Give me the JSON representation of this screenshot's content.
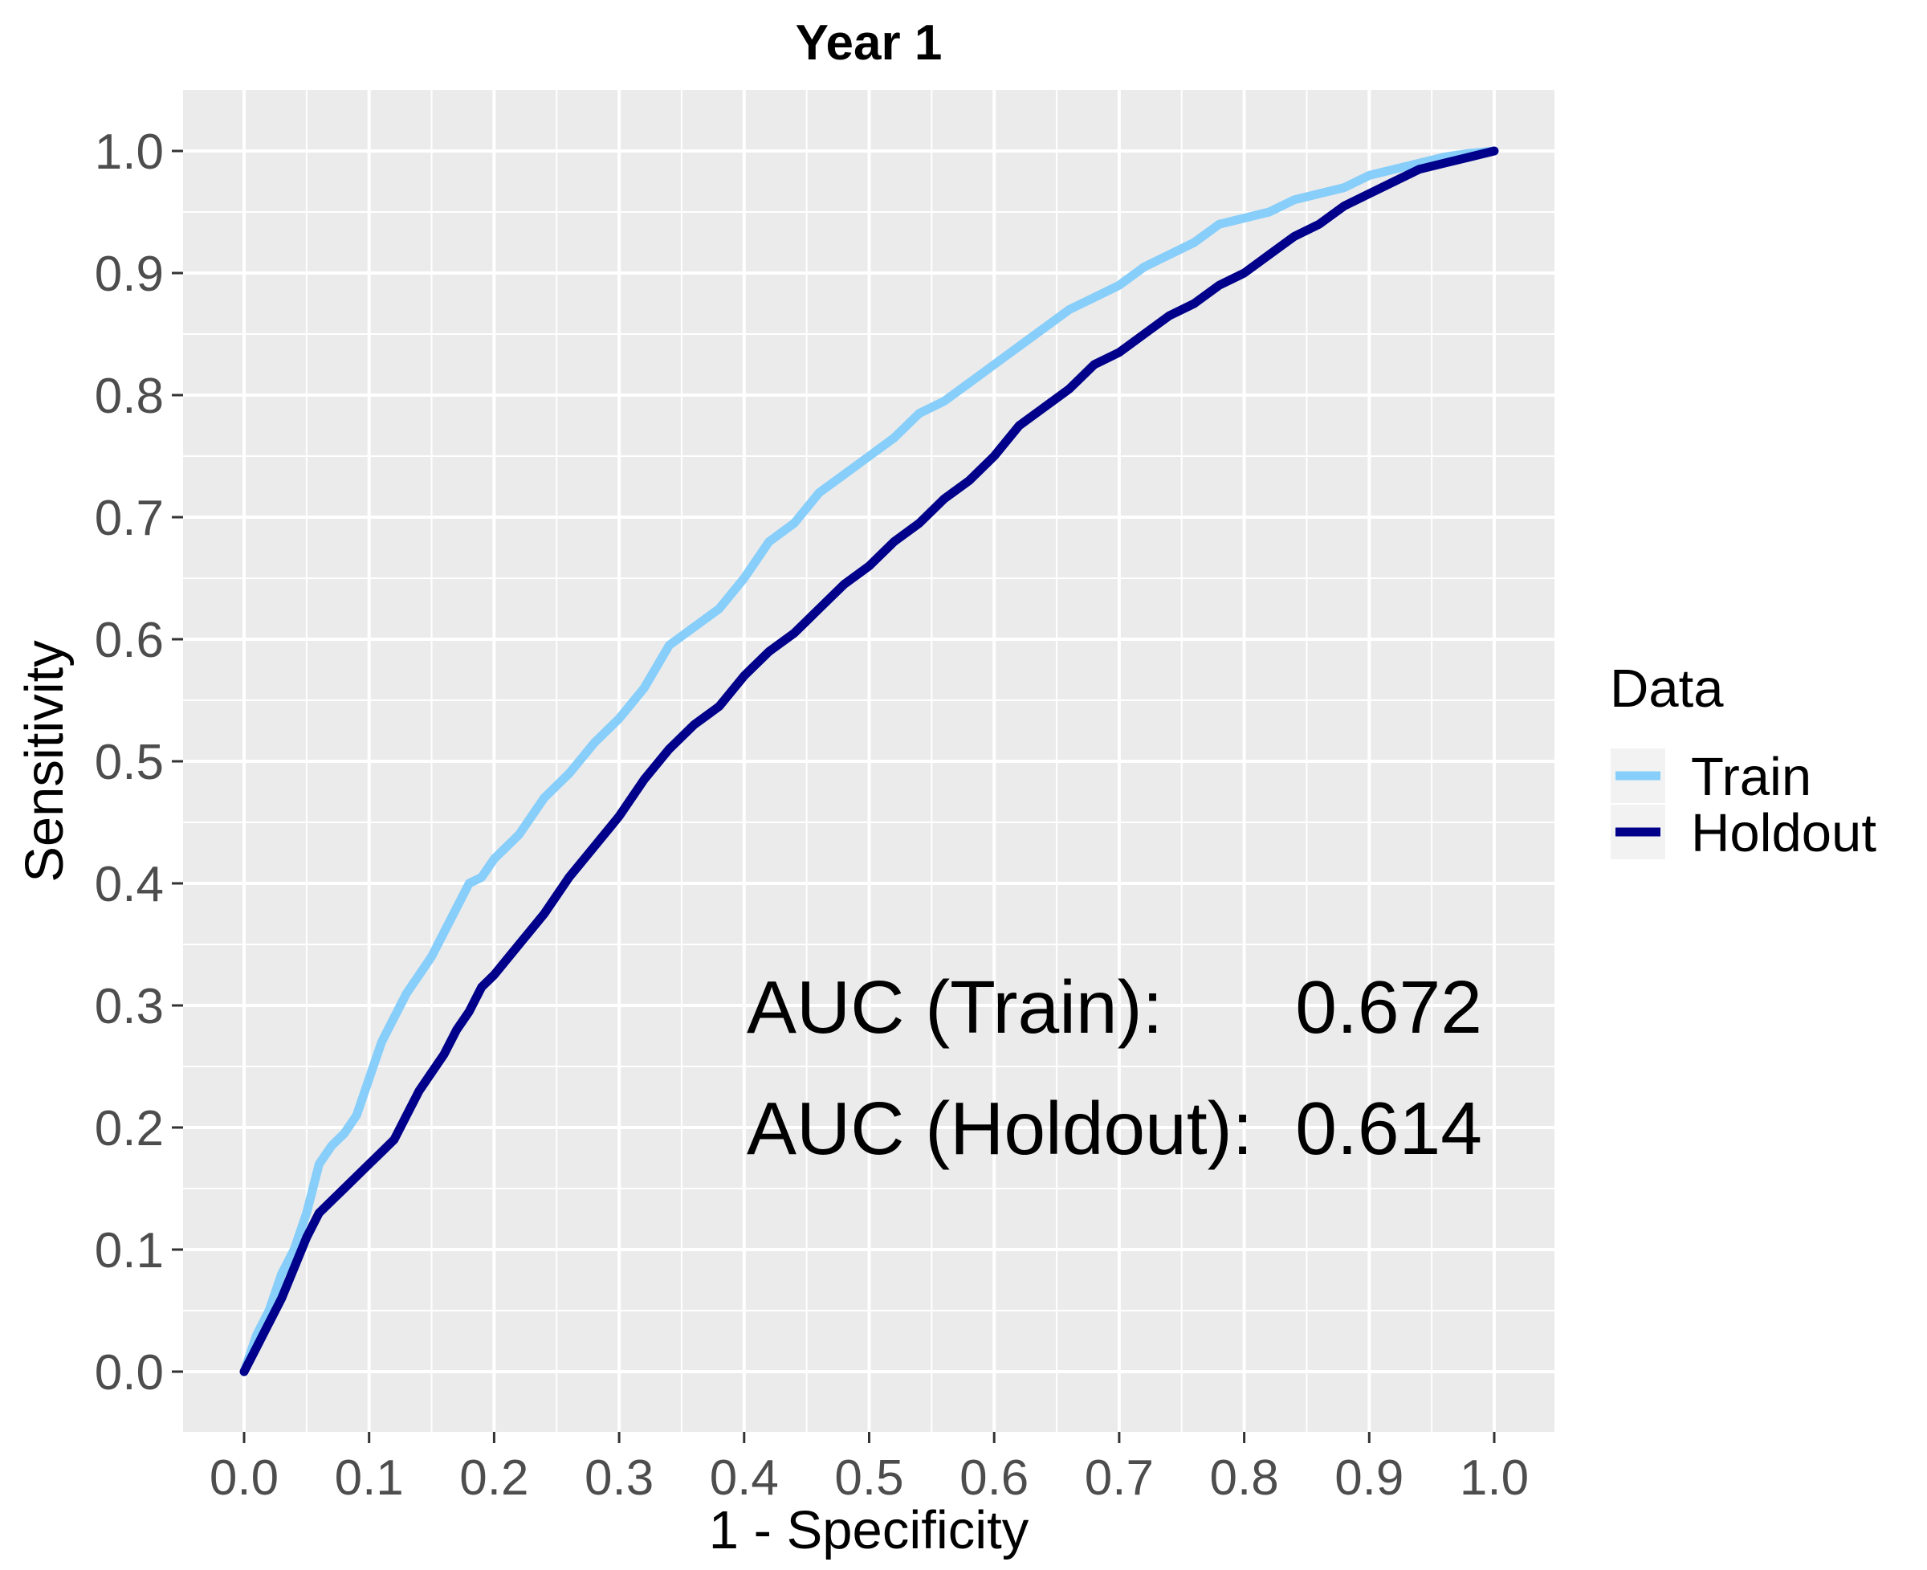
{
  "chart_data": {
    "type": "line",
    "title": "Year 1",
    "xlabel": "1 - Specificity",
    "ylabel": "Sensitivity",
    "xlim": [
      0,
      1
    ],
    "ylim": [
      0,
      1
    ],
    "x_ticks": [
      "0.0",
      "0.1",
      "0.2",
      "0.3",
      "0.4",
      "0.5",
      "0.6",
      "0.7",
      "0.8",
      "0.9",
      "1.0"
    ],
    "y_ticks": [
      "0.0",
      "0.1",
      "0.2",
      "0.3",
      "0.4",
      "0.5",
      "0.6",
      "0.7",
      "0.8",
      "0.9",
      "1.0"
    ],
    "grid": true,
    "background": "#ebebeb",
    "legend": {
      "title": "Data",
      "placement": "right"
    },
    "series": [
      {
        "name": "Train",
        "color": "#87cefa",
        "x": [
          0,
          0.01,
          0.02,
          0.03,
          0.04,
          0.05,
          0.06,
          0.07,
          0.08,
          0.09,
          0.1,
          0.11,
          0.12,
          0.13,
          0.14,
          0.15,
          0.16,
          0.17,
          0.18,
          0.19,
          0.2,
          0.22,
          0.24,
          0.26,
          0.28,
          0.3,
          0.32,
          0.34,
          0.36,
          0.38,
          0.4,
          0.42,
          0.44,
          0.46,
          0.48,
          0.5,
          0.52,
          0.54,
          0.56,
          0.58,
          0.6,
          0.62,
          0.64,
          0.66,
          0.68,
          0.7,
          0.72,
          0.74,
          0.76,
          0.78,
          0.8,
          0.82,
          0.84,
          0.86,
          0.88,
          0.9,
          0.92,
          0.94,
          0.96,
          0.98,
          1.0
        ],
        "y": [
          0,
          0.03,
          0.05,
          0.08,
          0.1,
          0.13,
          0.17,
          0.185,
          0.195,
          0.21,
          0.24,
          0.27,
          0.29,
          0.31,
          0.325,
          0.34,
          0.36,
          0.38,
          0.4,
          0.405,
          0.42,
          0.44,
          0.47,
          0.49,
          0.515,
          0.535,
          0.56,
          0.595,
          0.61,
          0.625,
          0.65,
          0.68,
          0.695,
          0.72,
          0.735,
          0.75,
          0.765,
          0.785,
          0.795,
          0.81,
          0.825,
          0.84,
          0.855,
          0.87,
          0.88,
          0.89,
          0.905,
          0.915,
          0.925,
          0.94,
          0.945,
          0.95,
          0.96,
          0.965,
          0.97,
          0.98,
          0.985,
          0.99,
          0.995,
          0.998,
          1.0
        ]
      },
      {
        "name": "Holdout",
        "color": "#00008b",
        "x": [
          0,
          0.01,
          0.02,
          0.03,
          0.04,
          0.05,
          0.06,
          0.07,
          0.08,
          0.09,
          0.1,
          0.11,
          0.12,
          0.13,
          0.14,
          0.15,
          0.16,
          0.17,
          0.18,
          0.19,
          0.2,
          0.22,
          0.24,
          0.26,
          0.28,
          0.3,
          0.32,
          0.34,
          0.36,
          0.38,
          0.4,
          0.42,
          0.44,
          0.46,
          0.48,
          0.5,
          0.52,
          0.54,
          0.56,
          0.58,
          0.6,
          0.62,
          0.64,
          0.66,
          0.68,
          0.7,
          0.72,
          0.74,
          0.76,
          0.78,
          0.8,
          0.82,
          0.84,
          0.86,
          0.88,
          0.9,
          0.92,
          0.94,
          0.96,
          0.98,
          1.0
        ],
        "y": [
          0,
          0.02,
          0.04,
          0.06,
          0.085,
          0.11,
          0.13,
          0.14,
          0.15,
          0.16,
          0.17,
          0.18,
          0.19,
          0.21,
          0.23,
          0.245,
          0.26,
          0.28,
          0.295,
          0.315,
          0.325,
          0.35,
          0.375,
          0.405,
          0.43,
          0.455,
          0.485,
          0.51,
          0.53,
          0.545,
          0.57,
          0.59,
          0.605,
          0.625,
          0.645,
          0.66,
          0.68,
          0.695,
          0.715,
          0.73,
          0.75,
          0.775,
          0.79,
          0.805,
          0.825,
          0.835,
          0.85,
          0.865,
          0.875,
          0.89,
          0.9,
          0.915,
          0.93,
          0.94,
          0.955,
          0.965,
          0.975,
          0.985,
          0.99,
          0.995,
          1.0
        ]
      }
    ],
    "annotations": [
      {
        "label": "AUC (Train):",
        "value": "0.672"
      },
      {
        "label": "AUC (Holdout):",
        "value": "0.614"
      }
    ]
  }
}
